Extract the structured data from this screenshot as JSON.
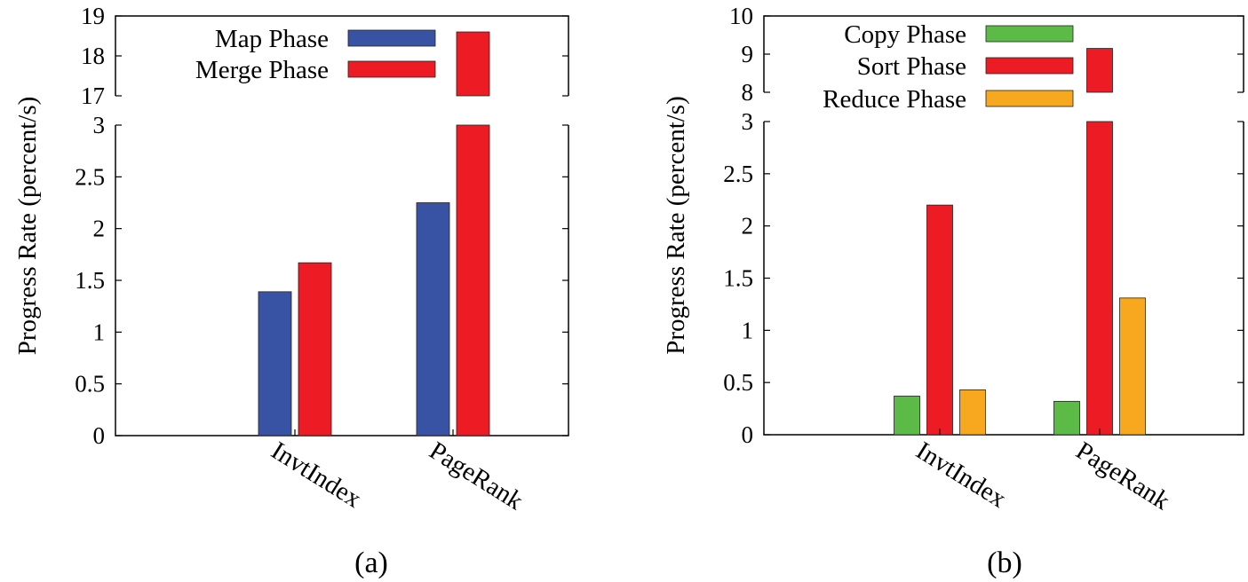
{
  "chart_data": [
    {
      "type": "bar",
      "panel_label": "(a)",
      "ylabel": "Progress Rate (percent/s)",
      "categories": [
        "InvtIndex",
        "PageRank"
      ],
      "series": [
        {
          "name": "Map Phase",
          "color": "#3953a4",
          "values": [
            1.39,
            2.25
          ]
        },
        {
          "name": "Merge Phase",
          "color": "#ed1c24",
          "values": [
            1.67,
            18.6
          ]
        }
      ],
      "broken_y_axis": true,
      "lower_range": [
        0,
        3
      ],
      "upper_range": [
        17,
        19
      ],
      "lower_ticks": [
        "0",
        "0.5",
        "1",
        "1.5",
        "2",
        "2.5",
        "3"
      ],
      "upper_ticks": [
        "17",
        "18",
        "19"
      ],
      "legend_position": "top-left"
    },
    {
      "type": "bar",
      "panel_label": "(b)",
      "ylabel": "Progress Rate (percent/s)",
      "categories": [
        "InvtIndex",
        "PageRank"
      ],
      "series": [
        {
          "name": "Copy Phase",
          "color": "#5bbb46",
          "values": [
            0.37,
            0.32
          ]
        },
        {
          "name": "Sort Phase",
          "color": "#ed1c24",
          "values": [
            2.2,
            9.15
          ]
        },
        {
          "name": "Reduce Phase",
          "color": "#f8a81e",
          "values": [
            0.43,
            1.31
          ]
        }
      ],
      "broken_y_axis": true,
      "lower_range": [
        0,
        3
      ],
      "upper_range": [
        8,
        10
      ],
      "lower_ticks": [
        "0",
        "0.5",
        "1",
        "1.5",
        "2",
        "2.5",
        "3"
      ],
      "upper_ticks": [
        "8",
        "9",
        "10"
      ],
      "legend_position": "top-left"
    }
  ]
}
